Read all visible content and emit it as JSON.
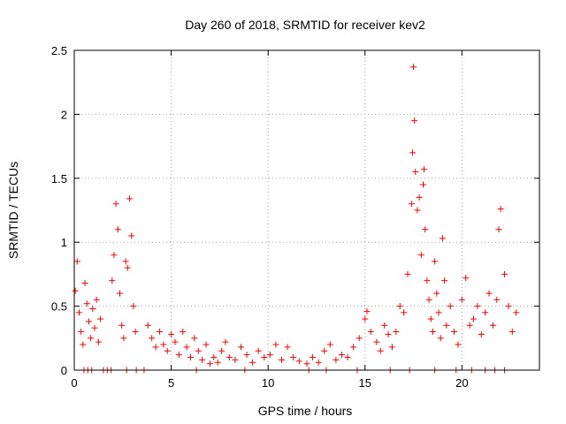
{
  "chart_data": {
    "type": "scatter",
    "title": "Day 260 of 2018, SRMTID for receiver kev2",
    "xlabel": "GPS time / hours",
    "ylabel": "SRMTID / TECUs",
    "xlim": [
      0,
      24
    ],
    "ylim": [
      0,
      2.5
    ],
    "xticks": [
      0,
      5,
      10,
      15,
      20
    ],
    "yticks": [
      0,
      0.5,
      1,
      1.5,
      2,
      2.5
    ],
    "ytick_labels": [
      "0",
      "0.5",
      "1",
      "1.5",
      "2",
      "2.5"
    ],
    "grid": true,
    "legend": "none",
    "marker": "+",
    "series": [
      {
        "name": "SRMTID",
        "color": "#ff0000",
        "x": [
          0.05,
          0.15,
          0.25,
          0.35,
          0.45,
          0.55,
          0.65,
          0.75,
          0.85,
          0.95,
          1.05,
          1.15,
          1.25,
          1.35,
          1.95,
          2.05,
          2.15,
          2.25,
          2.35,
          2.45,
          2.55,
          2.65,
          2.75,
          2.85,
          2.95,
          3.05,
          3.15,
          3.8,
          4.0,
          4.2,
          4.4,
          4.6,
          4.8,
          5.0,
          5.2,
          5.4,
          5.6,
          5.8,
          6.0,
          6.2,
          6.4,
          6.6,
          6.8,
          7.0,
          7.2,
          7.4,
          7.6,
          7.8,
          8.0,
          8.3,
          8.6,
          8.9,
          9.2,
          9.5,
          9.8,
          10.1,
          10.4,
          10.7,
          11.0,
          11.3,
          11.6,
          12.0,
          12.3,
          12.6,
          12.9,
          13.2,
          13.5,
          13.8,
          14.1,
          14.4,
          14.7,
          15.0,
          15.1,
          15.3,
          15.6,
          15.8,
          16.0,
          16.2,
          16.4,
          16.6,
          16.8,
          17.0,
          17.2,
          17.4,
          17.45,
          17.5,
          17.55,
          17.6,
          17.7,
          17.8,
          17.9,
          18.0,
          18.05,
          18.1,
          18.2,
          18.3,
          18.4,
          18.5,
          18.6,
          18.7,
          18.8,
          18.9,
          19.0,
          19.1,
          19.2,
          19.4,
          19.6,
          19.8,
          20.0,
          20.2,
          20.4,
          20.6,
          20.8,
          21.0,
          21.2,
          21.4,
          21.6,
          21.8,
          21.9,
          22.0,
          22.2,
          22.4,
          22.6,
          22.8,
          0.5,
          0.7,
          0.9,
          1.5,
          1.7,
          1.9,
          2.7,
          3.2,
          3.6,
          6.3,
          8.8,
          12.1,
          13.0,
          14.6,
          16.3,
          17.3,
          18.6,
          19.7,
          20.5,
          21.2,
          21.7,
          22.2
        ],
        "y": [
          0.62,
          0.85,
          0.45,
          0.3,
          0.2,
          0.68,
          0.52,
          0.38,
          0.25,
          0.48,
          0.33,
          0.55,
          0.22,
          0.4,
          0.7,
          0.9,
          1.3,
          1.1,
          0.6,
          0.35,
          0.25,
          0.85,
          0.8,
          1.34,
          1.05,
          0.5,
          0.3,
          0.35,
          0.25,
          0.18,
          0.3,
          0.2,
          0.15,
          0.28,
          0.22,
          0.12,
          0.3,
          0.18,
          0.1,
          0.25,
          0.15,
          0.08,
          0.2,
          0.05,
          0.1,
          0.06,
          0.15,
          0.22,
          0.1,
          0.08,
          0.18,
          0.12,
          0.06,
          0.15,
          0.1,
          0.12,
          0.2,
          0.08,
          0.18,
          0.1,
          0.07,
          0.05,
          0.1,
          0.06,
          0.15,
          0.2,
          0.08,
          0.12,
          0.1,
          0.18,
          0.25,
          0.4,
          0.46,
          0.3,
          0.22,
          0.15,
          0.35,
          0.28,
          0.18,
          0.3,
          0.5,
          0.45,
          0.75,
          1.3,
          1.7,
          2.37,
          1.95,
          1.55,
          1.25,
          1.35,
          0.9,
          1.45,
          1.57,
          1.1,
          0.7,
          0.55,
          0.4,
          0.3,
          0.85,
          0.6,
          0.45,
          0.25,
          1.03,
          0.7,
          0.35,
          0.5,
          0.3,
          0.2,
          0.55,
          0.72,
          0.35,
          0.4,
          0.5,
          0.28,
          0.45,
          0.6,
          0.35,
          0.55,
          1.1,
          1.26,
          0.75,
          0.5,
          0.3,
          0.45,
          0.0,
          0.0,
          0.0,
          0.0,
          0.0,
          0.0,
          0.0,
          0.0,
          0.0,
          0.0,
          0.0,
          0.0,
          0.0,
          0.0,
          0.0,
          0.0,
          0.0,
          0.0,
          0.0,
          0.0,
          0.0,
          0.0
        ]
      }
    ]
  }
}
